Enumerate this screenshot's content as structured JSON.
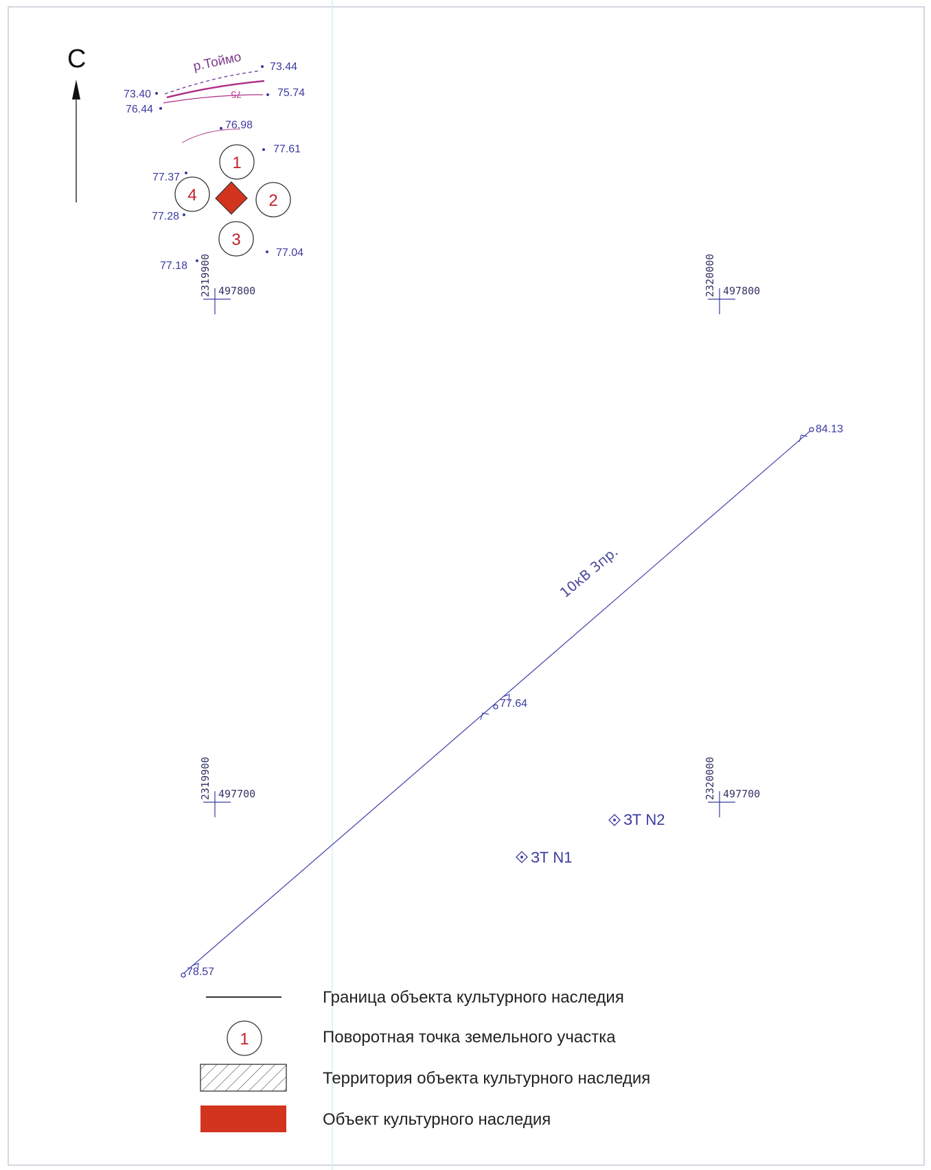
{
  "north_label": "С",
  "river": {
    "label": "р.Тоймо",
    "contour_label": "75"
  },
  "elevations": [
    "73.44",
    "73.40",
    "75.74",
    "76.44",
    "76.98",
    "77.61",
    "77.37",
    "77.28",
    "77.04",
    "77.18",
    "84.13",
    "77.64",
    "78.57"
  ],
  "grid_marks": [
    {
      "vertical": "2319900",
      "horizontal": "497800"
    },
    {
      "vertical": "2320000",
      "horizontal": "497800"
    },
    {
      "vertical": "2319900",
      "horizontal": "497700"
    },
    {
      "vertical": "2320000",
      "horizontal": "497700"
    }
  ],
  "turning_points": [
    "1",
    "2",
    "3",
    "4"
  ],
  "power_line": {
    "label": "10кВ 3пр."
  },
  "objects": [
    "ЗТ N2",
    "ЗТ N1"
  ],
  "legend": [
    {
      "symbol": "line",
      "label": "Граница объекта культурного наследия"
    },
    {
      "symbol": "circle",
      "number": "1",
      "label": "Поворотная точка земельного участка"
    },
    {
      "symbol": "hatch",
      "label": "Территория объекта культурного наследия"
    },
    {
      "symbol": "fill",
      "label": "Объект культурного наследия"
    }
  ],
  "colors": {
    "frame": "#c9c9d6",
    "ink": "#3a3aa0",
    "object": "#d2341e",
    "turning_point": "#c0202a",
    "river": "#b0308a"
  }
}
